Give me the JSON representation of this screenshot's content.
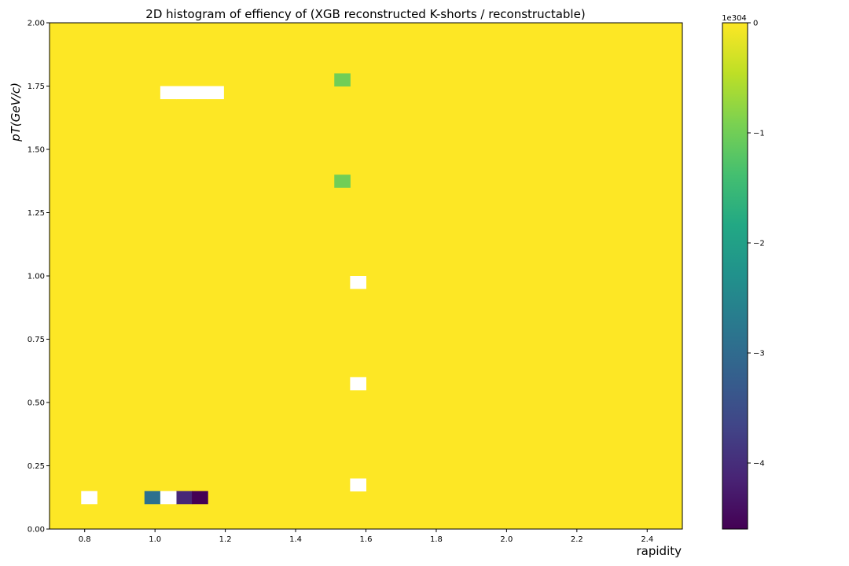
{
  "chart_data": {
    "type": "heatmap",
    "title": "2D histogram of effiency of (XGB reconstructed K-shorts / reconstructable)",
    "xlabel": "rapidity",
    "ylabel": "pT(GeV/c)",
    "xlim": [
      0.7,
      2.5
    ],
    "ylim": [
      0.0,
      2.0
    ],
    "x_ticks": [
      "0.8",
      "1.0",
      "1.2",
      "1.4",
      "1.6",
      "1.8",
      "2.0",
      "2.2",
      "2.4"
    ],
    "y_ticks": [
      "0.00",
      "0.25",
      "0.50",
      "0.75",
      "1.00",
      "1.25",
      "1.50",
      "1.75",
      "2.00"
    ],
    "bins": {
      "x_start": 0.7,
      "x_width": 0.045,
      "nx": 40,
      "y_start": 0.0,
      "y_width": 0.05,
      "ny": 40
    },
    "default_value": 0,
    "colormap": "viridis",
    "colorbar": {
      "range": [
        -4.6,
        0
      ],
      "ticks": [
        "0",
        "−1",
        "−2",
        "−3",
        "−4"
      ],
      "tick_values": [
        0,
        -1,
        -2,
        -3,
        -4
      ],
      "offset_label": "1e304"
    },
    "cells": [
      {
        "x": 0.835,
        "y": 1.775,
        "value": -1.0
      },
      {
        "x": 0.835,
        "y": 1.375,
        "value": -1.0
      },
      {
        "x": 0.295,
        "y": 0.125,
        "value": -2.9
      },
      {
        "x": 0.385,
        "y": 0.125,
        "value": -4.1
      },
      {
        "x": 0.43,
        "y": 0.125,
        "value": -4.6
      }
    ],
    "empty_cells": [
      {
        "x": 0.115,
        "y": 0.125
      },
      {
        "x": 0.34,
        "y": 0.125
      },
      {
        "x": 0.34,
        "y": 1.725
      },
      {
        "x": 0.385,
        "y": 1.725
      },
      {
        "x": 0.43,
        "y": 1.725
      },
      {
        "x": 0.475,
        "y": 1.725
      },
      {
        "x": 0.88,
        "y": 0.975
      },
      {
        "x": 0.88,
        "y": 0.575
      },
      {
        "x": 0.88,
        "y": 0.175
      }
    ]
  }
}
